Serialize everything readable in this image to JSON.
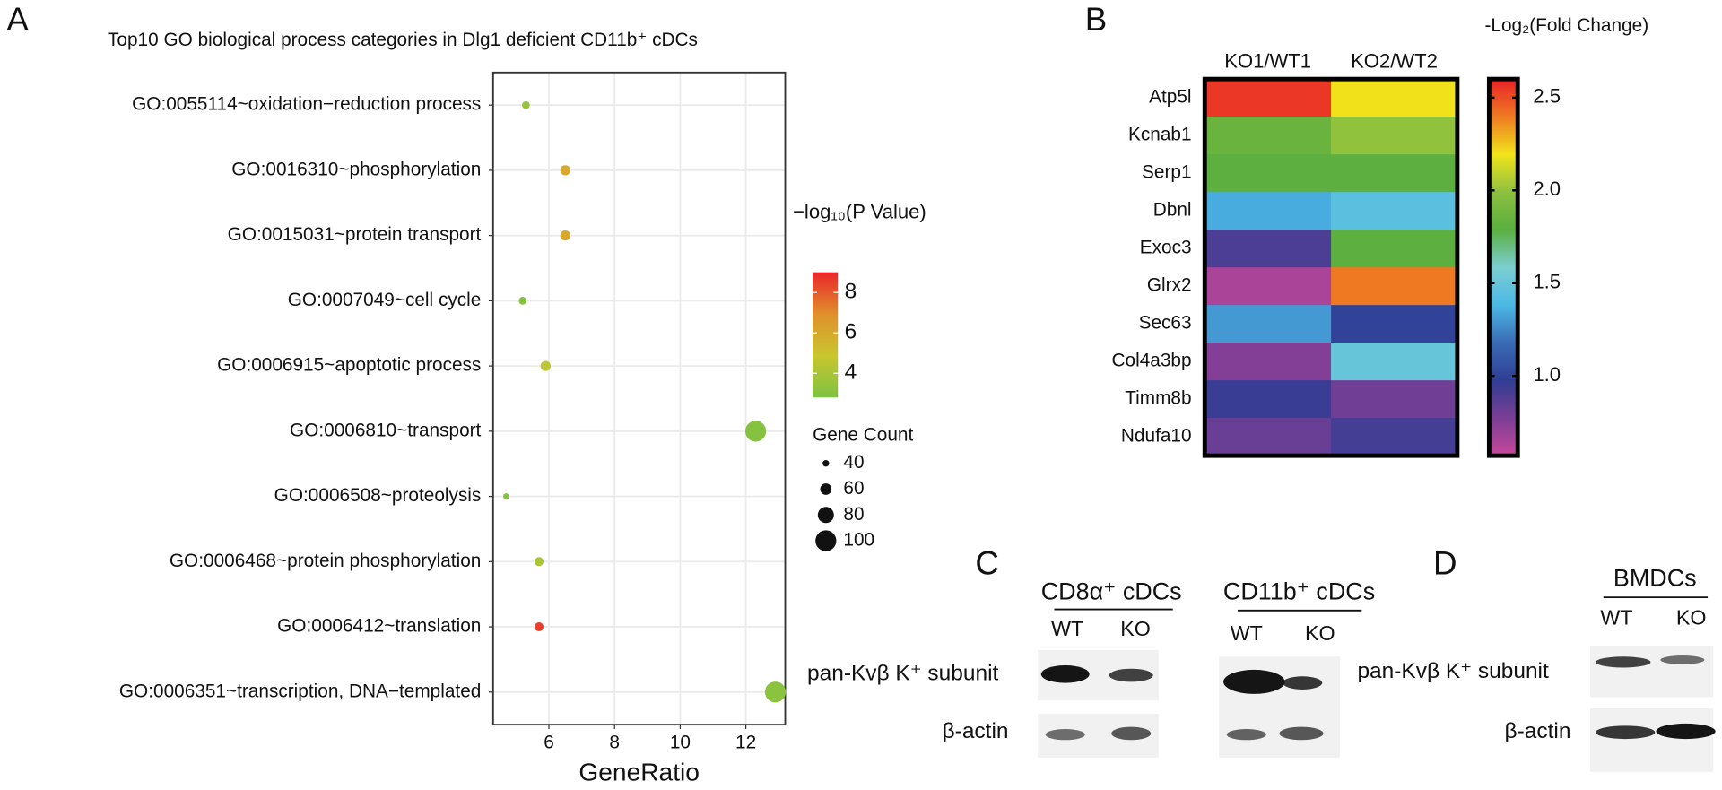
{
  "chart_data": [
    {
      "type": "dotplot",
      "panel": "A",
      "title": "Top10 GO biological process categories in Dlg1 deficient CD11b⁺ cDCs",
      "xlabel": "GeneRatio",
      "categories": [
        "GO:0055114~oxidation−reduction process",
        "GO:0016310~phosphorylation",
        "GO:0015031~protein transport",
        "GO:0007049~cell cycle",
        "GO:0006915~apoptotic process",
        "GO:0006810~transport",
        "GO:0006508~proteolysis",
        "GO:0006468~protein phosphorylation",
        "GO:0006412~translation",
        "GO:0006351~transcription, DNA−templated"
      ],
      "x": [
        5.3,
        6.5,
        6.5,
        5.2,
        5.9,
        12.3,
        4.7,
        5.7,
        5.7,
        12.9
      ],
      "gene_count": [
        45,
        55,
        55,
        45,
        55,
        100,
        38,
        50,
        50,
        100
      ],
      "neg_log10_p": [
        3.5,
        6,
        6,
        3,
        4.5,
        3,
        3,
        4,
        8.5,
        3.2
      ],
      "xlim": [
        4.3,
        13.2
      ],
      "xticks": [
        6,
        8,
        10,
        12
      ],
      "grid": true,
      "color_legend": {
        "title": "−log₁₀(P Value)",
        "lim": [
          2.8,
          9
        ],
        "ticks": [
          4,
          6,
          8
        ],
        "colorscale": [
          "#7dc242",
          "#c9c62f",
          "#e0902c",
          "#e9262a"
        ]
      },
      "size_legend": {
        "title": "Gene Count",
        "values": [
          40,
          60,
          80,
          100
        ]
      }
    },
    {
      "type": "heatmap",
      "panel": "B",
      "columns": [
        "KO1/WT1",
        "KO2/WT2"
      ],
      "rows": [
        "Atp5l",
        "Kcnab1",
        "Serp1",
        "Dbnl",
        "Exoc3",
        "Glrx2",
        "Sec63",
        "Col4a3bp",
        "Timm8b",
        "Ndufa10"
      ],
      "values": [
        [
          2.55,
          2.2
        ],
        [
          1.85,
          2.0
        ],
        [
          1.8,
          1.8
        ],
        [
          1.35,
          1.45
        ],
        [
          0.9,
          1.8
        ],
        [
          0.65,
          2.4
        ],
        [
          1.3,
          1.0
        ],
        [
          0.75,
          1.5
        ],
        [
          0.95,
          0.8
        ],
        [
          0.82,
          0.92
        ]
      ],
      "colorbar": {
        "title": "-Log₂(Fold Change)",
        "lim": [
          0.57,
          2.6
        ],
        "ticks": [
          {
            "value": 1,
            "label": "1.0"
          },
          {
            "value": 1.5,
            "label": "1.5"
          },
          {
            "value": 2,
            "label": "2.0"
          },
          {
            "value": 2.5,
            "label": "2.5"
          }
        ],
        "colorscale": [
          "#c8489a",
          "#7a3e95",
          "#2f3e94",
          "#3a6bb5",
          "#4bb8e6",
          "#7ccfd0",
          "#5aae3f",
          "#8dc03f",
          "#f1e41a",
          "#ef7a22",
          "#e82127"
        ]
      }
    }
  ],
  "blots": [
    {
      "panel": "C",
      "groups": [
        {
          "title": "CD8α⁺ cDCs",
          "lanes": [
            "WT",
            "KO"
          ]
        },
        {
          "title": "CD11b⁺ cDCs",
          "lanes": [
            "WT",
            "KO"
          ]
        }
      ],
      "rows": [
        "pan-Kvβ K⁺ subunit",
        "β-actin"
      ]
    },
    {
      "panel": "D",
      "groups": [
        {
          "title": "BMDCs",
          "lanes": [
            "WT",
            "KO"
          ]
        }
      ],
      "rows": [
        "pan-Kvβ K⁺ subunit",
        "β-actin"
      ]
    }
  ]
}
